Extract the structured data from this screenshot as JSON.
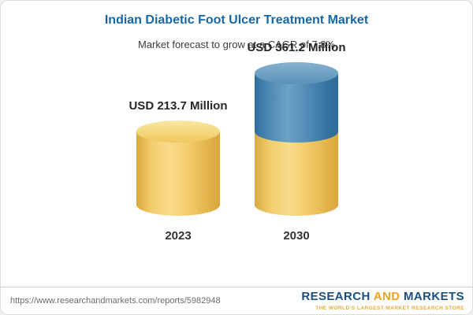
{
  "chart_data": {
    "type": "bar",
    "title": "Indian Diabetic Foot Ulcer Treatment Market",
    "subtitle": "Market forecast to grow at a CAGR of 7.8%",
    "categories": [
      "2023",
      "2030"
    ],
    "values": [
      213.7,
      361.2
    ],
    "unit": "USD Million",
    "bar_labels": [
      "USD 213.7 Million",
      "USD 361.2 Million"
    ],
    "cagr_percent": 7.8,
    "colors": {
      "base_segment": "#F0C75E",
      "growth_segment": "#3E7CAC",
      "title": "#1568A7"
    },
    "ylim": [
      0,
      400
    ],
    "grid": false,
    "legend": false,
    "notes": "2030 cylinder is stacked: bottom segment equals 2023 value, blue top segment is the growth to 361.2"
  },
  "footer": {
    "url": "https://www.researchandmarkets.com/reports/5982948",
    "logo": {
      "word1": "RESEARCH",
      "word2": "AND",
      "word3": "MARKETS",
      "tagline": "THE WORLD’S LARGEST MARKET RESEARCH STORE"
    }
  }
}
